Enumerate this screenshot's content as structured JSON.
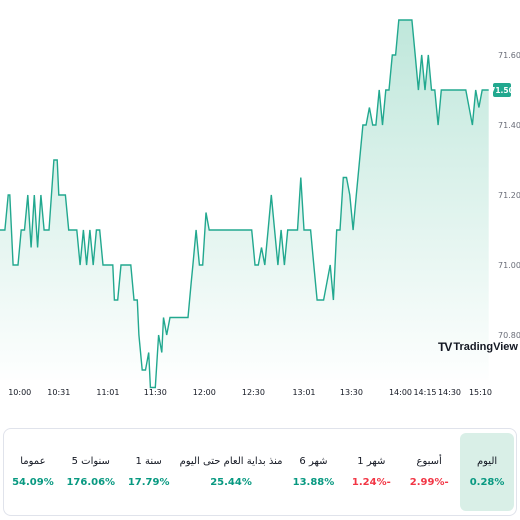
{
  "chart_data": {
    "type": "area",
    "ylim": [
      70.7,
      71.7
    ],
    "y_ticks": [
      "71.60",
      "71.40",
      "71.20",
      "71.00",
      "70.80"
    ],
    "x_ticks": [
      "10:00",
      "10:31",
      "11:01",
      "11:30",
      "12:00",
      "12:30",
      "13:01",
      "13:30",
      "14:00",
      "14:15",
      "14:30",
      "15:10"
    ],
    "last_price": "71.50",
    "series": [
      {
        "values": [
          [
            "09:55",
            71.1
          ],
          [
            "09:58",
            71.1
          ],
          [
            "10:00",
            71.2
          ],
          [
            "10:01",
            71.2
          ],
          [
            "10:03",
            71.0
          ],
          [
            "10:06",
            71.0
          ],
          [
            "10:08",
            71.1
          ],
          [
            "10:10",
            71.1
          ],
          [
            "10:12",
            71.2
          ],
          [
            "10:14",
            71.05
          ],
          [
            "10:16",
            71.2
          ],
          [
            "10:18",
            71.05
          ],
          [
            "10:20",
            71.2
          ],
          [
            "10:22",
            71.1
          ],
          [
            "10:25",
            71.1
          ],
          [
            "10:28",
            71.3
          ],
          [
            "10:30",
            71.3
          ],
          [
            "10:31",
            71.2
          ],
          [
            "10:35",
            71.2
          ],
          [
            "10:37",
            71.1
          ],
          [
            "10:42",
            71.1
          ],
          [
            "10:44",
            71.0
          ],
          [
            "10:46",
            71.1
          ],
          [
            "10:48",
            71.0
          ],
          [
            "10:50",
            71.1
          ],
          [
            "10:52",
            71.0
          ],
          [
            "10:54",
            71.1
          ],
          [
            "10:56",
            71.1
          ],
          [
            "10:58",
            71.0
          ],
          [
            "11:01",
            71.0
          ],
          [
            "11:04",
            71.0
          ],
          [
            "11:05",
            70.9
          ],
          [
            "11:07",
            70.9
          ],
          [
            "11:09",
            71.0
          ],
          [
            "11:15",
            71.0
          ],
          [
            "11:17",
            70.9
          ],
          [
            "11:19",
            70.9
          ],
          [
            "11:20",
            70.8
          ],
          [
            "11:22",
            70.7
          ],
          [
            "11:24",
            70.7
          ],
          [
            "11:26",
            70.75
          ],
          [
            "11:27",
            70.65
          ],
          [
            "11:30",
            70.65
          ],
          [
            "11:32",
            70.8
          ],
          [
            "11:34",
            70.75
          ],
          [
            "11:35",
            70.85
          ],
          [
            "11:37",
            70.8
          ],
          [
            "11:39",
            70.85
          ],
          [
            "11:50",
            70.85
          ],
          [
            "11:52",
            70.95
          ],
          [
            "11:53",
            71.0
          ],
          [
            "11:55",
            71.1
          ],
          [
            "11:57",
            71.0
          ],
          [
            "11:59",
            71.0
          ],
          [
            "12:01",
            71.15
          ],
          [
            "12:03",
            71.1
          ],
          [
            "12:05",
            71.1
          ],
          [
            "12:08",
            71.1
          ],
          [
            "12:12",
            71.1
          ],
          [
            "12:21",
            71.1
          ],
          [
            "12:25",
            71.1
          ],
          [
            "12:29",
            71.1
          ],
          [
            "12:30",
            71.05
          ],
          [
            "12:31",
            71.0
          ],
          [
            "12:33",
            71.0
          ],
          [
            "12:35",
            71.05
          ],
          [
            "12:37",
            71.0
          ],
          [
            "12:39",
            71.1
          ],
          [
            "12:41",
            71.2
          ],
          [
            "12:43",
            71.1
          ],
          [
            "12:45",
            71.0
          ],
          [
            "12:47",
            71.1
          ],
          [
            "12:49",
            71.0
          ],
          [
            "12:51",
            71.1
          ],
          [
            "12:53",
            71.1
          ],
          [
            "12:55",
            71.1
          ],
          [
            "12:57",
            71.1
          ],
          [
            "12:59",
            71.25
          ],
          [
            "13:01",
            71.1
          ],
          [
            "13:03",
            71.1
          ],
          [
            "13:05",
            71.1
          ],
          [
            "13:07",
            71.0
          ],
          [
            "13:09",
            70.9
          ],
          [
            "13:11",
            70.9
          ],
          [
            "13:13",
            70.9
          ],
          [
            "13:15",
            70.95
          ],
          [
            "13:17",
            71.0
          ],
          [
            "13:19",
            70.9
          ],
          [
            "13:21",
            71.1
          ],
          [
            "13:23",
            71.1
          ],
          [
            "13:25",
            71.25
          ],
          [
            "13:27",
            71.25
          ],
          [
            "13:29",
            71.2
          ],
          [
            "13:31",
            71.1
          ],
          [
            "13:33",
            71.2
          ],
          [
            "13:35",
            71.3
          ],
          [
            "13:37",
            71.4
          ],
          [
            "13:39",
            71.4
          ],
          [
            "13:41",
            71.45
          ],
          [
            "13:43",
            71.4
          ],
          [
            "13:45",
            71.4
          ],
          [
            "13:47",
            71.5
          ],
          [
            "13:49",
            71.4
          ],
          [
            "13:51",
            71.5
          ],
          [
            "13:53",
            71.5
          ],
          [
            "13:55",
            71.6
          ],
          [
            "13:57",
            71.6
          ],
          [
            "13:59",
            71.7
          ],
          [
            "14:01",
            71.7
          ],
          [
            "14:03",
            71.7
          ],
          [
            "14:05",
            71.7
          ],
          [
            "14:07",
            71.7
          ],
          [
            "14:09",
            71.6
          ],
          [
            "14:11",
            71.5
          ],
          [
            "14:13",
            71.6
          ],
          [
            "14:15",
            71.5
          ],
          [
            "14:17",
            71.6
          ],
          [
            "14:19",
            71.5
          ],
          [
            "14:21",
            71.5
          ],
          [
            "14:23",
            71.4
          ],
          [
            "14:25",
            71.5
          ],
          [
            "14:27",
            71.5
          ],
          [
            "14:29",
            71.5
          ],
          [
            "14:31",
            71.5
          ],
          [
            "14:33",
            71.5
          ],
          [
            "14:35",
            71.5
          ],
          [
            "14:37",
            71.5
          ],
          [
            "14:40",
            71.5
          ],
          [
            "14:42",
            71.45
          ],
          [
            "14:44",
            71.4
          ],
          [
            "14:46",
            71.5
          ],
          [
            "14:48",
            71.45
          ],
          [
            "14:50",
            71.5
          ],
          [
            "14:52",
            71.5
          ],
          [
            "14:54",
            71.5
          ]
        ]
      }
    ]
  },
  "colors": {
    "line": "#22a88f",
    "area_top": "#bfe7db",
    "area_bottom": "#ffffff",
    "price_tag": "#22a88f",
    "up": "#089981",
    "down": "#f23645"
  },
  "logo": {
    "mark": "TV",
    "text": "TradingView"
  },
  "performance": [
    {
      "label": "اليوم",
      "value": "0.28%",
      "dir": "up",
      "active": true
    },
    {
      "label": "أسبوع",
      "value": "2.99%-",
      "dir": "down",
      "active": false
    },
    {
      "label": "1 شهر",
      "value": "1.24%-",
      "dir": "down",
      "active": false
    },
    {
      "label": "6 شهر",
      "value": "13.88%",
      "dir": "up",
      "active": false
    },
    {
      "label": "منذ بداية العام حتى اليوم",
      "value": "25.44%",
      "dir": "up",
      "active": false
    },
    {
      "label": "1 سنة",
      "value": "17.79%",
      "dir": "up",
      "active": false
    },
    {
      "label": "5 سنوات",
      "value": "176.06%",
      "dir": "up",
      "active": false
    },
    {
      "label": "عموما",
      "value": "54.09%",
      "dir": "up",
      "active": false
    }
  ]
}
